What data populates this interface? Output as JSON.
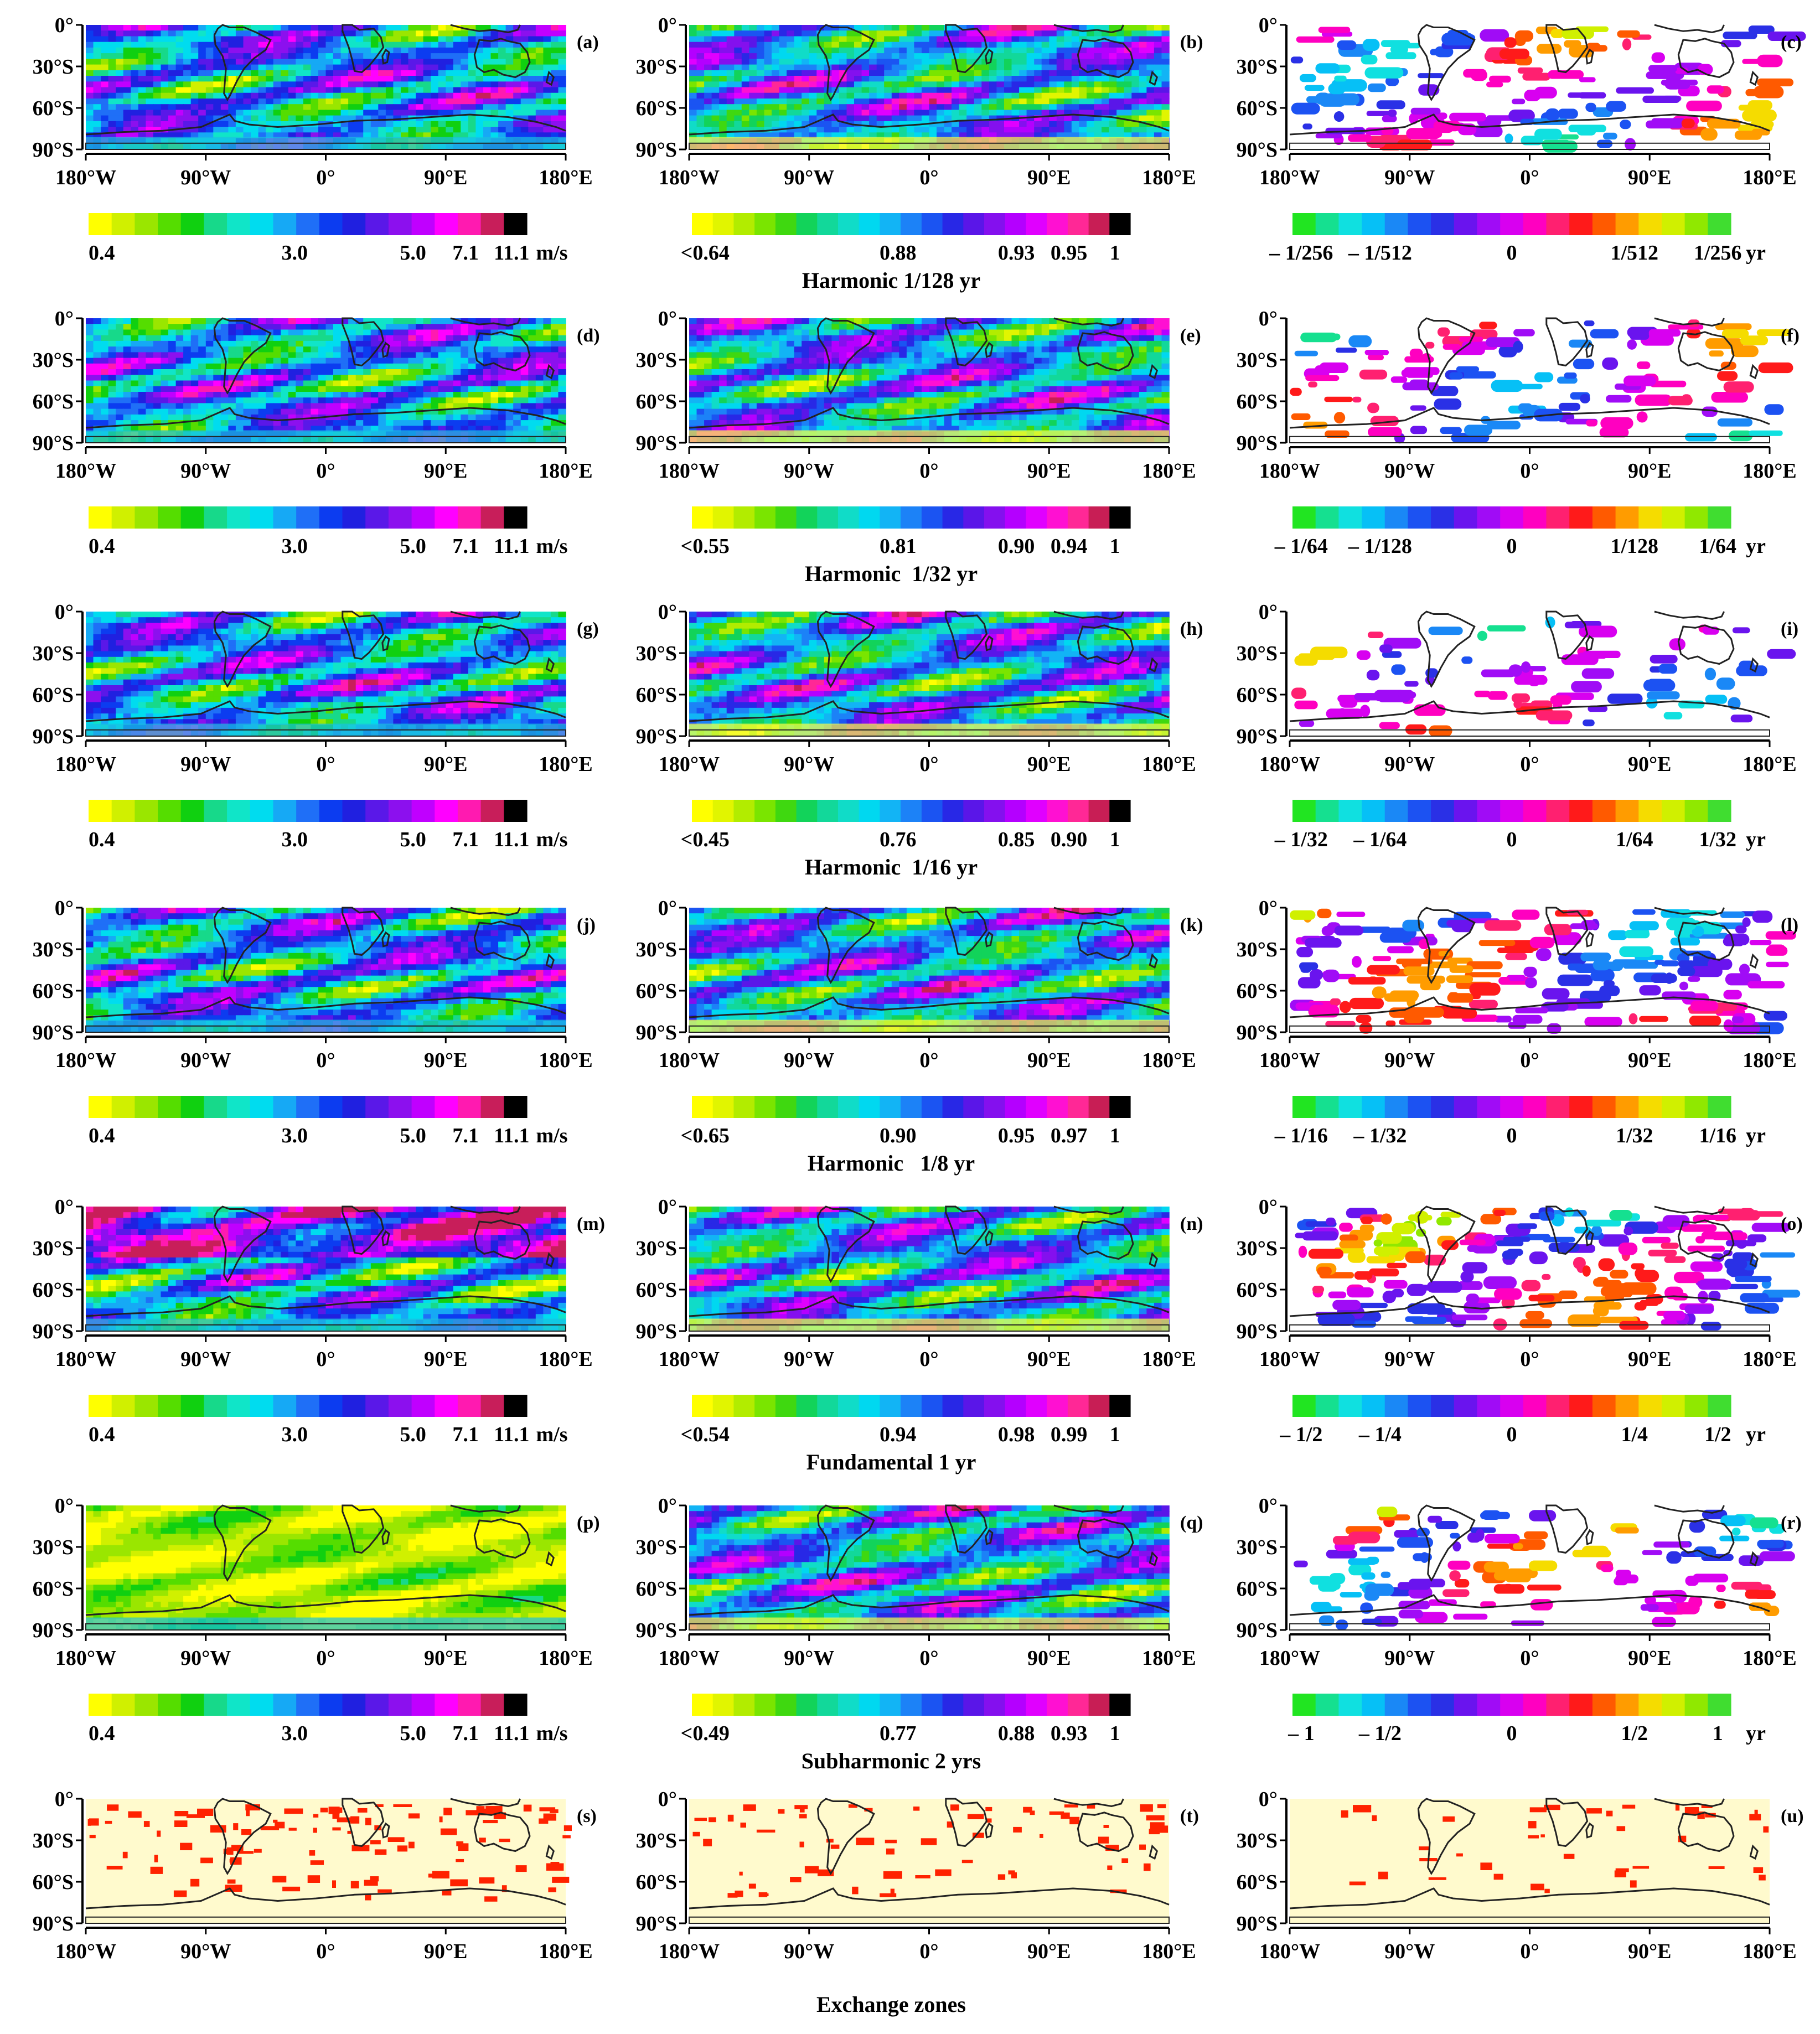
{
  "figure": {
    "axes": {
      "y_ticks": [
        "0°",
        "30°S",
        "60°S",
        "90°S"
      ],
      "x_ticks": [
        "180°W",
        "90°W",
        "0°",
        "90°E",
        "180°E"
      ]
    },
    "colors": {
      "speed_scale": [
        "#ffff00",
        "#d0f000",
        "#9ae600",
        "#55dd00",
        "#10d010",
        "#17d98a",
        "#10e5c8",
        "#00dcef",
        "#16a9f5",
        "#1f6ff7",
        "#0c3cf0",
        "#2020e0",
        "#5a18e8",
        "#8c10ee",
        "#c000ff",
        "#ff00ff",
        "#ff1ab0",
        "#c81e5a",
        "#000000"
      ],
      "coherence_scale": [
        "#ffff00",
        "#e1f500",
        "#b2ec00",
        "#7ae500",
        "#3fd810",
        "#12d35a",
        "#12d89a",
        "#10dcc8",
        "#00d8f0",
        "#12b4f5",
        "#1c82f7",
        "#1b54f2",
        "#2828e6",
        "#5a16e8",
        "#8410ee",
        "#b400ff",
        "#e000ff",
        "#ff10d2",
        "#ff2896",
        "#c81e55",
        "#000000"
      ],
      "lag_scale": [
        "#21e521",
        "#15e090",
        "#10e0e0",
        "#06c0f6",
        "#1a88f6",
        "#1c52f2",
        "#2a30e6",
        "#6a14ee",
        "#a00cf6",
        "#d800f0",
        "#ff00c0",
        "#ff2070",
        "#ff1a1a",
        "#ff5a00",
        "#ff9c00",
        "#f5dc00",
        "#d0f000",
        "#90e800",
        "#40dd30"
      ],
      "exchange_background": "#fffacd",
      "exchange_marker": "#ff2200",
      "coastline": "#222222"
    },
    "rows": [
      {
        "title": "Harmonic 1/128 yr",
        "panel_labels": [
          "(a)",
          "(b)",
          "(c)"
        ],
        "speed_ticks": [
          "0.4",
          "3.0",
          "5.0",
          "7.1",
          "11.1"
        ],
        "speed_unit": "m/s",
        "coherence_ticks": [
          "<0.64",
          "0.88",
          "0.93",
          "0.95",
          "1"
        ],
        "lag_ticks": [
          "– 1/256",
          "– 1/512",
          "0",
          "1/512",
          "1/256"
        ],
        "lag_unit": "yr"
      },
      {
        "title": "Harmonic  1/32 yr",
        "panel_labels": [
          "(d)",
          "(e)",
          "(f)"
        ],
        "speed_ticks": [
          "0.4",
          "3.0",
          "5.0",
          "7.1",
          "11.1"
        ],
        "speed_unit": "m/s",
        "coherence_ticks": [
          "<0.55",
          "0.81",
          "0.90",
          "0.94",
          "1"
        ],
        "lag_ticks": [
          "– 1/64",
          "– 1/128",
          "0",
          "1/128",
          "1/64"
        ],
        "lag_unit": "yr"
      },
      {
        "title": "Harmonic  1/16 yr",
        "panel_labels": [
          "(g)",
          "(h)",
          "(i)"
        ],
        "speed_ticks": [
          "0.4",
          "3.0",
          "5.0",
          "7.1",
          "11.1"
        ],
        "speed_unit": "m/s",
        "coherence_ticks": [
          "<0.45",
          "0.76",
          "0.85",
          "0.90",
          "1"
        ],
        "lag_ticks": [
          "– 1/32",
          "– 1/64",
          "0",
          "1/64",
          "1/32"
        ],
        "lag_unit": "yr"
      },
      {
        "title": "Harmonic   1/8 yr",
        "panel_labels": [
          "(j)",
          "(k)",
          "(l)"
        ],
        "speed_ticks": [
          "0.4",
          "3.0",
          "5.0",
          "7.1",
          "11.1"
        ],
        "speed_unit": "m/s",
        "coherence_ticks": [
          "<0.65",
          "0.90",
          "0.95",
          "0.97",
          "1"
        ],
        "lag_ticks": [
          "– 1/16",
          "– 1/32",
          "0",
          "1/32",
          "1/16"
        ],
        "lag_unit": "yr"
      },
      {
        "title": "Fundamental 1 yr",
        "panel_labels": [
          "(m)",
          "(n)",
          "(o)"
        ],
        "speed_ticks": [
          "0.4",
          "3.0",
          "5.0",
          "7.1",
          "11.1"
        ],
        "speed_unit": "m/s",
        "coherence_ticks": [
          "<0.54",
          "0.94",
          "0.98",
          "0.99",
          "1"
        ],
        "lag_ticks": [
          "– 1/2",
          "– 1/4",
          "0",
          "1/4",
          "1/2"
        ],
        "lag_unit": "yr"
      },
      {
        "title": "Subharmonic 2 yrs",
        "panel_labels": [
          "(p)",
          "(q)",
          "(r)"
        ],
        "speed_ticks": [
          "0.4",
          "3.0",
          "5.0",
          "7.1",
          "11.1"
        ],
        "speed_unit": "m/s",
        "coherence_ticks": [
          "<0.49",
          "0.77",
          "0.88",
          "0.93",
          "1"
        ],
        "lag_ticks": [
          "– 1",
          "– 1/2",
          "0",
          "1/2",
          "1"
        ],
        "lag_unit": "yr"
      }
    ],
    "exchange_row": {
      "title": "Exchange zones",
      "panel_labels": [
        "(s)",
        "(t)",
        "(u)"
      ]
    }
  },
  "chart_data": {
    "type": "heatmap",
    "description_of_panels": "7 rows x 3 columns of Southern Hemisphere maps (0°–90°S, 180°W–180°E). Rows 1–6: wave speed (m/s), coherence, and time lag (yr) for the harmonics 1/128, 1/32, 1/16, 1/8 yr, fundamental 1 yr and subharmonic 2 yrs. Row 7: exchange zones.",
    "xlim": [
      "180°W",
      "180°E"
    ],
    "ylim": [
      "0°",
      "90°S"
    ],
    "field_values": "not recoverable cell-by-cell; panels drawn as procedural colour textures"
  }
}
